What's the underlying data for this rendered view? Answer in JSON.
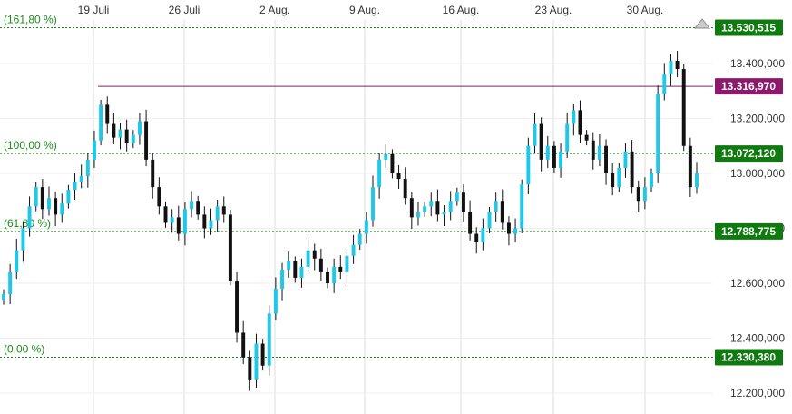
{
  "chart_data": {
    "type": "line",
    "subtype": "candlestick",
    "title": "",
    "xlabel": "",
    "ylabel": "",
    "ylim": [
      12180000,
      13580000
    ],
    "x_tick_labels": [
      "19 Juli",
      "26 Juli",
      "2 Aug.",
      "9 Aug.",
      "16 Aug.",
      "23 Aug.",
      "30 Aug."
    ],
    "y_tick_values": [
      12200000,
      12400000,
      12600000,
      12800000,
      13000000,
      13200000,
      13400000
    ],
    "y_tick_labels": [
      "12.200,000",
      "12.400,000",
      "12.600,000",
      "12.800,000",
      "13.000,000",
      "13.200,000",
      "13.400,000"
    ],
    "fibonacci_levels": [
      {
        "label": "(161,80 %)",
        "value": 13530515,
        "value_label": "13.530,515"
      },
      {
        "label": "(100,00 %)",
        "value": 13072120,
        "value_label": "13.072,120"
      },
      {
        "label": "(61,80 %)",
        "value": 12788775,
        "value_label": "12.788,775"
      },
      {
        "label": "(0,00 %)",
        "value": 12330380,
        "value_label": "12.330,380"
      }
    ],
    "resistance_line": {
      "value": 13316970,
      "value_label": "13.316,970",
      "color": "#8b1a6b"
    },
    "colors": {
      "up": "#1ec8e8",
      "down": "#111111",
      "fib": "#1f8a1f",
      "label_bg": "#0f7a0f",
      "grid": "#dddddd"
    },
    "series": [
      {
        "values": [
          12560000,
          12640000,
          12720000,
          12800000,
          12880000,
          12950000,
          12870000,
          12910000,
          12850000,
          12890000,
          12940000,
          12970000,
          12990000,
          13050000,
          13120000,
          13250000,
          13180000,
          13130000,
          13160000,
          13110000,
          13140000,
          13190000,
          13050000,
          12950000,
          12880000,
          12820000,
          12840000,
          12780000,
          12870000,
          12900000,
          12850000,
          12800000,
          12830000,
          12880000,
          12850000,
          12610000,
          12420000,
          12330000,
          12250000,
          12380000,
          12300000,
          12490000,
          12580000,
          12650000,
          12680000,
          12620000,
          12660000,
          12720000,
          12690000,
          12640000,
          12600000,
          12660000,
          12640000,
          12700000,
          12740000,
          12780000,
          12830000,
          12950000,
          13050000,
          13070000,
          13000000,
          12980000,
          12910000,
          12840000,
          12860000,
          12880000,
          12900000,
          12850000,
          12860000,
          12900000,
          12930000,
          12860000,
          12780000,
          12750000,
          12800000,
          12860000,
          12900000,
          12820000,
          12780000,
          12800000,
          12960000,
          13100000,
          13180000,
          13050000,
          13100000,
          13020000,
          13080000,
          13180000,
          13230000,
          13140000,
          13120000,
          13050000,
          13100000,
          13000000,
          12950000,
          13020000,
          13080000,
          12950000,
          12900000,
          12950000,
          13000000,
          13290000,
          13360000,
          13410000,
          13380000,
          13100000,
          12950000,
          13000000
        ]
      }
    ]
  }
}
